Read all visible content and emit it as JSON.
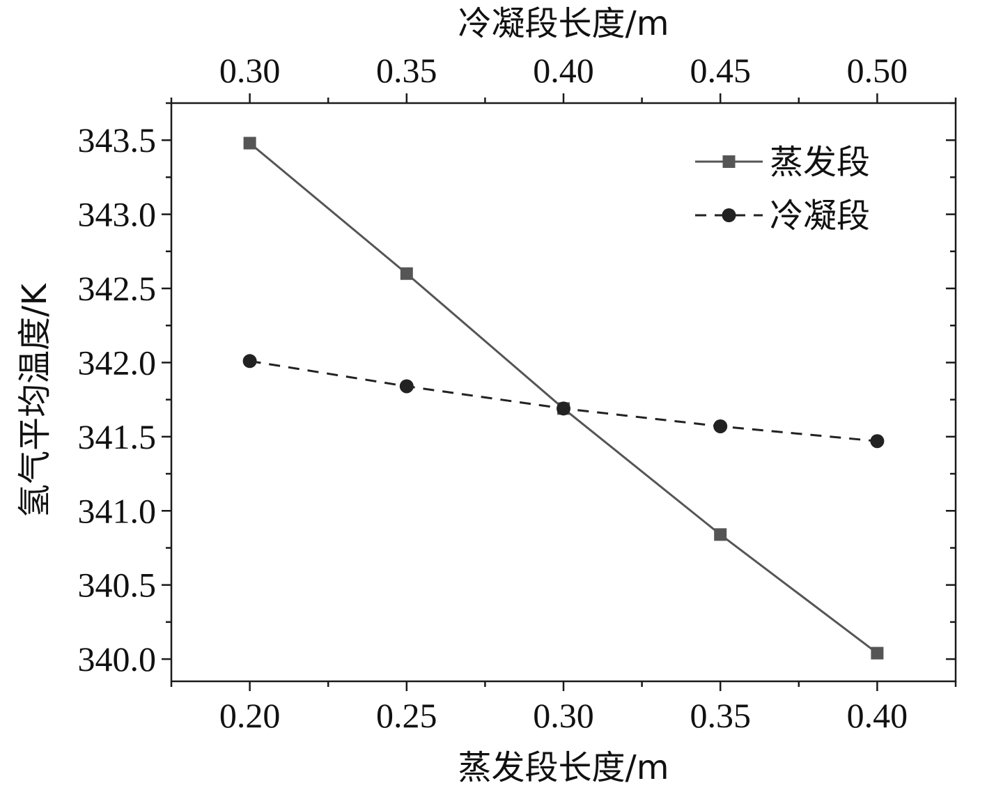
{
  "chart_data": {
    "type": "line",
    "xlabel": "蒸发段长度/m",
    "x2label": "冷凝段长度/m",
    "ylabel": "氢气平均温度/K",
    "xlim": [
      0.175,
      0.425
    ],
    "x2lim": [
      0.275,
      0.525
    ],
    "ylim": [
      339.85,
      343.75
    ],
    "xticks": [
      "0.20",
      "0.25",
      "0.30",
      "0.35",
      "0.40"
    ],
    "xtick_values": [
      0.2,
      0.25,
      0.3,
      0.35,
      0.4
    ],
    "x2ticks": [
      "0.30",
      "0.35",
      "0.40",
      "0.45",
      "0.50"
    ],
    "x2tick_values": [
      0.3,
      0.35,
      0.4,
      0.45,
      0.5
    ],
    "yticks": [
      "340.0",
      "340.5",
      "341.0",
      "341.5",
      "342.0",
      "342.5",
      "343.0",
      "343.5"
    ],
    "ytick_values": [
      340.0,
      340.5,
      341.0,
      341.5,
      342.0,
      342.5,
      343.0,
      343.5
    ],
    "legend_position": "top-right",
    "grid": false,
    "series": [
      {
        "name": "蒸发段",
        "axis": "bottom",
        "marker": "square",
        "linestyle": "solid",
        "color": "#555555",
        "x": [
          0.2,
          0.25,
          0.3,
          0.35,
          0.4
        ],
        "y": [
          343.48,
          342.6,
          341.69,
          340.84,
          340.04
        ]
      },
      {
        "name": "冷凝段",
        "axis": "top",
        "marker": "circle",
        "linestyle": "dashed",
        "color": "#222222",
        "x": [
          0.3,
          0.35,
          0.4,
          0.45,
          0.5
        ],
        "y": [
          342.01,
          341.84,
          341.69,
          341.57,
          341.47
        ]
      }
    ]
  }
}
